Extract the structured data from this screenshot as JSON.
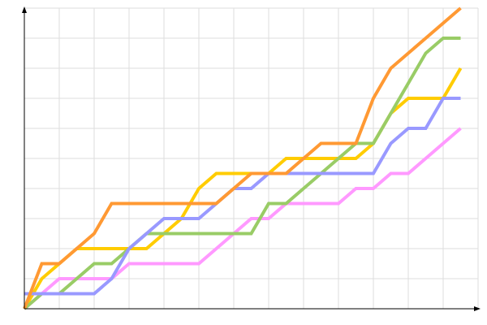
{
  "chart_data": {
    "type": "line",
    "title": "",
    "xlabel": "",
    "ylabel": "",
    "xlim": [
      0,
      13
    ],
    "ylim": [
      0,
      10
    ],
    "grid": true,
    "x": [
      0,
      0.5,
      1,
      1.5,
      2,
      2.5,
      3,
      3.5,
      4,
      4.5,
      5,
      5.5,
      6,
      6.5,
      7,
      7.5,
      8,
      8.5,
      9,
      9.5,
      10,
      10.5,
      11,
      11.5,
      12,
      12.5
    ],
    "series": [
      {
        "color": "#ff99ff",
        "values": [
          0,
          0.5,
          1,
          1,
          1,
          1,
          1.5,
          1.5,
          1.5,
          1.5,
          1.5,
          2,
          2.5,
          3,
          3,
          3.5,
          3.5,
          3.5,
          3.5,
          4,
          4,
          4.5,
          4.5,
          5,
          5.5,
          6
        ]
      },
      {
        "color": "#ffcc00",
        "values": [
          0,
          1,
          1.5,
          2,
          2,
          2,
          2,
          2,
          2.5,
          3,
          4,
          4.5,
          4.5,
          4.5,
          4.5,
          5,
          5,
          5,
          5,
          5,
          5.5,
          6.5,
          7,
          7,
          7,
          8
        ]
      },
      {
        "color": "#99cc66",
        "values": [
          0,
          0.5,
          0.5,
          1,
          1.5,
          1.5,
          2,
          2.5,
          2.5,
          2.5,
          2.5,
          2.5,
          2.5,
          2.5,
          3.5,
          3.5,
          4,
          4.5,
          5,
          5.5,
          5.5,
          6.5,
          7.5,
          8.5,
          9,
          9
        ]
      },
      {
        "color": "#9999ff",
        "values": [
          0.5,
          0.5,
          0.5,
          0.5,
          0.5,
          1,
          2,
          2.5,
          3,
          3,
          3,
          3.5,
          4,
          4,
          4.5,
          4.5,
          4.5,
          4.5,
          4.5,
          4.5,
          4.5,
          5.5,
          6,
          6,
          7,
          7
        ]
      },
      {
        "color": "#ff9933",
        "values": [
          0,
          1.5,
          1.5,
          2,
          2.5,
          3.5,
          3.5,
          3.5,
          3.5,
          3.5,
          3.5,
          3.5,
          4,
          4.5,
          4.5,
          4.5,
          5,
          5.5,
          5.5,
          5.5,
          7,
          8,
          8.5,
          9,
          9.5,
          10
        ]
      }
    ]
  }
}
